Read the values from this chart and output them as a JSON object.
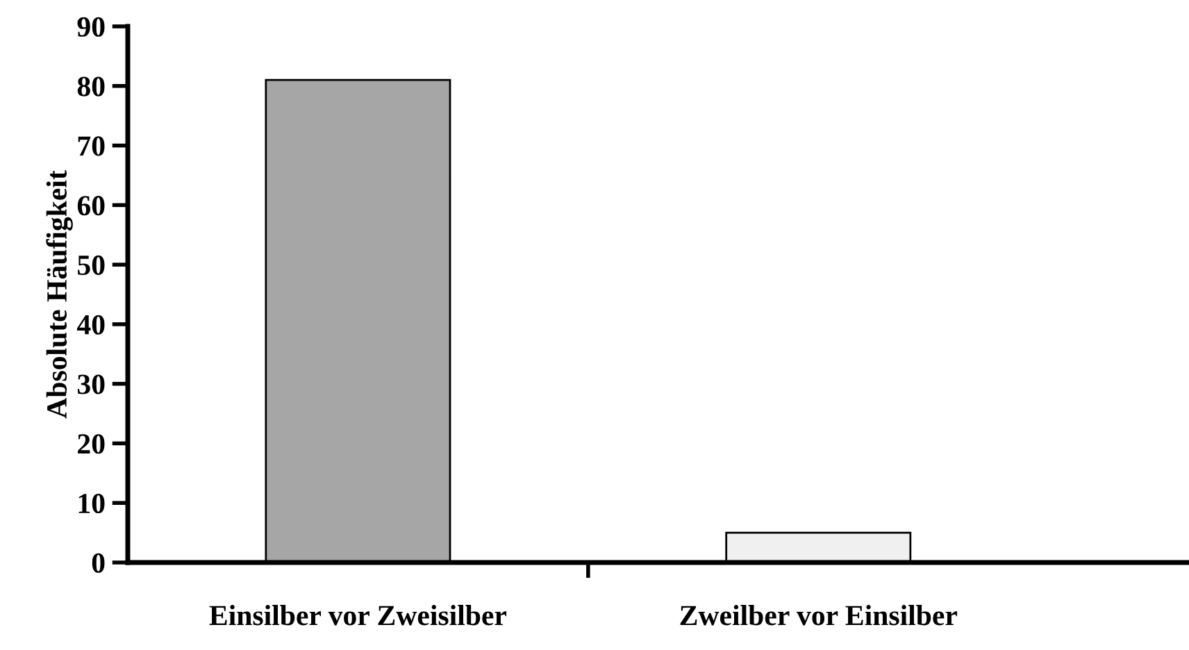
{
  "chart_data": {
    "type": "bar",
    "ylabel": "Absolute Häufigkeit",
    "categories": [
      "Einsilber vor Zweisilber",
      "Zweilber vor Einsilber"
    ],
    "values": [
      81,
      5
    ],
    "colors": [
      "#a6a6a6",
      "#f0f0f0"
    ],
    "ylim": [
      0,
      90
    ],
    "yticks": [
      0,
      10,
      20,
      30,
      40,
      50,
      60,
      70,
      80,
      90
    ],
    "grid": false,
    "legend": false
  }
}
